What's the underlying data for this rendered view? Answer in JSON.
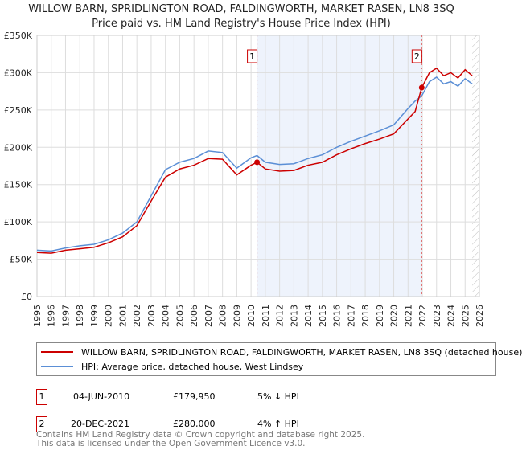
{
  "title": "WILLOW BARN, SPRIDLINGTON ROAD, FALDINGWORTH, MARKET RASEN, LN8 3SQ",
  "subtitle": "Price paid vs. HM Land Registry's House Price Index (HPI)",
  "chart_data": {
    "type": "line",
    "ylim": [
      0,
      350000
    ],
    "xlim": [
      1995,
      2026
    ],
    "yticks": [
      {
        "v": 0,
        "label": "£0"
      },
      {
        "v": 50000,
        "label": "£50K"
      },
      {
        "v": 100000,
        "label": "£100K"
      },
      {
        "v": 150000,
        "label": "£150K"
      },
      {
        "v": 200000,
        "label": "£200K"
      },
      {
        "v": 250000,
        "label": "£250K"
      },
      {
        "v": 300000,
        "label": "£300K"
      },
      {
        "v": 350000,
        "label": "£350K"
      }
    ],
    "xticks": [
      "1995",
      "1996",
      "1997",
      "1998",
      "1999",
      "2000",
      "2001",
      "2002",
      "2003",
      "2004",
      "2005",
      "2006",
      "2007",
      "2008",
      "2009",
      "2010",
      "2011",
      "2012",
      "2013",
      "2014",
      "2015",
      "2016",
      "2017",
      "2018",
      "2019",
      "2020",
      "2021",
      "2022",
      "2023",
      "2024",
      "2025",
      "2026"
    ],
    "series": [
      {
        "name": "WILLOW BARN, SPRIDLINGTON ROAD, FALDINGWORTH, MARKET RASEN, LN8 3SQ (detached house)",
        "color": "#cc0000",
        "x": [
          1995,
          1996,
          1997,
          1998,
          1999,
          2000,
          2001,
          2002,
          2003,
          2004,
          2005,
          2006,
          2007,
          2008,
          2009,
          2010,
          2010.42,
          2011,
          2012,
          2013,
          2014,
          2015,
          2016,
          2017,
          2018,
          2019,
          2020,
          2021,
          2021.5,
          2021.96,
          2022.5,
          2023,
          2023.5,
          2024,
          2024.5,
          2025,
          2025.5
        ],
        "y": [
          59000,
          58000,
          62000,
          64000,
          66000,
          72000,
          80000,
          95000,
          128000,
          160000,
          171000,
          176000,
          185000,
          184000,
          163000,
          176000,
          179950,
          171000,
          168000,
          169000,
          176000,
          180000,
          190000,
          198000,
          205000,
          211000,
          218000,
          238000,
          248000,
          280000,
          300000,
          306000,
          296000,
          300000,
          293000,
          304000,
          296000
        ]
      },
      {
        "name": "HPI: Average price, detached house, West Lindsey",
        "color": "#5b8fd6",
        "x": [
          1995,
          1996,
          1997,
          1998,
          1999,
          2000,
          2001,
          2002,
          2003,
          2004,
          2005,
          2006,
          2007,
          2008,
          2009,
          2010,
          2010.42,
          2011,
          2012,
          2013,
          2014,
          2015,
          2016,
          2017,
          2018,
          2019,
          2020,
          2021,
          2021.5,
          2021.96,
          2022.5,
          2023,
          2023.5,
          2024,
          2024.5,
          2025,
          2025.5
        ],
        "y": [
          62000,
          61000,
          65000,
          68000,
          70000,
          76000,
          85000,
          100000,
          135000,
          170000,
          180000,
          185000,
          195000,
          193000,
          172000,
          186000,
          189000,
          180000,
          177000,
          178000,
          185000,
          190000,
          200000,
          208000,
          215000,
          222000,
          230000,
          252000,
          262000,
          269000,
          288000,
          294000,
          285000,
          288000,
          282000,
          292000,
          285000
        ]
      }
    ],
    "markers": [
      {
        "label": "1",
        "x": 2010.42,
        "y": 179950
      },
      {
        "label": "2",
        "x": 2021.96,
        "y": 280000
      }
    ],
    "shaded_range": [
      2010.42,
      2021.96
    ],
    "hatched_from": 2025.5
  },
  "legend": {
    "items": [
      "WILLOW BARN, SPRIDLINGTON ROAD, FALDINGWORTH, MARKET RASEN, LN8 3SQ (detached house)",
      "HPI: Average price, detached house, West Lindsey"
    ]
  },
  "transactions": [
    {
      "num": "1",
      "date": "04-JUN-2010",
      "price": "£179,950",
      "hpi": "5% ↓ HPI"
    },
    {
      "num": "2",
      "date": "20-DEC-2021",
      "price": "£280,000",
      "hpi": "4% ↑ HPI"
    }
  ],
  "footer": [
    "Contains HM Land Registry data © Crown copyright and database right 2025.",
    "This data is licensed under the Open Government Licence v3.0."
  ]
}
